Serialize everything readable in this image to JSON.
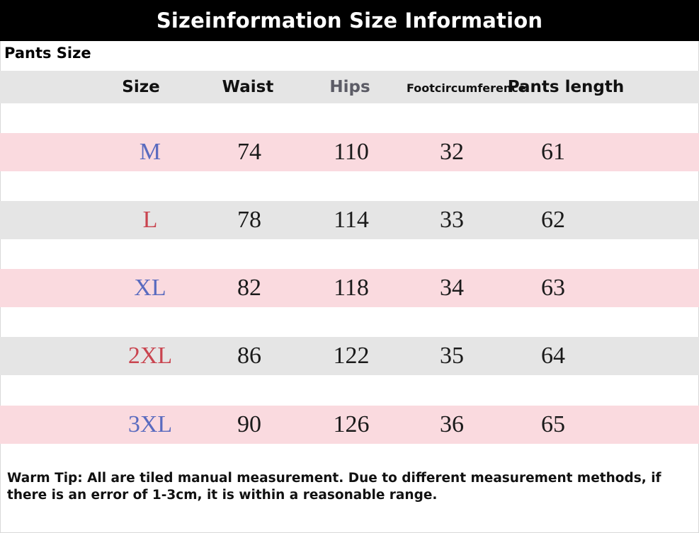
{
  "title": "Sizeinformation Size Information",
  "section_title": "Pants Size",
  "columns": [
    {
      "label_lines": [
        "Size"
      ],
      "style": "normal"
    },
    {
      "label_lines": [
        "Waist"
      ],
      "style": "normal"
    },
    {
      "label_lines": [
        "Hips"
      ],
      "style": "muted"
    },
    {
      "label_lines": [
        "Foot",
        "circumference"
      ],
      "style": "small"
    },
    {
      "label_lines": [
        "Pants length"
      ],
      "style": "normal"
    }
  ],
  "rows": [
    {
      "size": "M",
      "waist": "74",
      "hips": "110",
      "foot": "32",
      "length": "61",
      "size_color": "#5a6bbf",
      "band": "pink"
    },
    {
      "size": "L",
      "waist": "78",
      "hips": "114",
      "foot": "33",
      "length": "62",
      "size_color": "#c9444f",
      "band": "grey"
    },
    {
      "size": "XL",
      "waist": "82",
      "hips": "118",
      "foot": "34",
      "length": "63",
      "size_color": "#5a6bbf",
      "band": "pink"
    },
    {
      "size": "2XL",
      "waist": "86",
      "hips": "122",
      "foot": "35",
      "length": "64",
      "size_color": "#c9444f",
      "band": "grey"
    },
    {
      "size": "3XL",
      "waist": "90",
      "hips": "126",
      "foot": "36",
      "length": "65",
      "size_color": "#5a6bbf",
      "band": "pink"
    }
  ],
  "warm_tip": "Warm Tip: All are tiled manual measurement. Due to different measurement methods, if there is an error of 1-3cm, it is within a reasonable range.",
  "colors": {
    "title_bg": "#000000",
    "pink_band": "#fadadf",
    "grey_band": "#e5e5e5"
  }
}
